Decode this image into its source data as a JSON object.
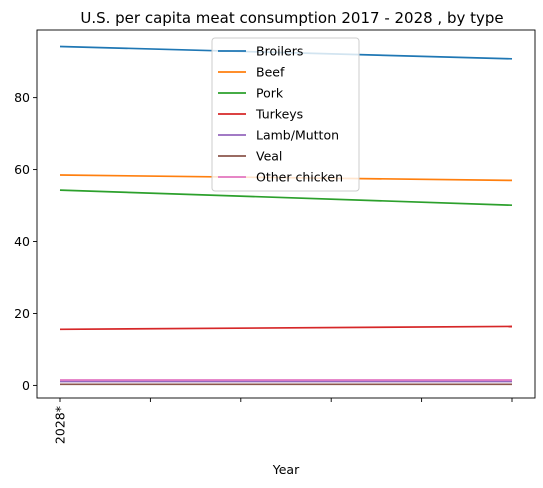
{
  "chart_data": {
    "type": "line",
    "title": "U.S. per capita meat consumption 2017 - 2028 , by type",
    "xlabel": "Year",
    "ylabel": "",
    "x_tick_labels": [
      "2028*",
      "",
      "",
      "",
      "",
      ""
    ],
    "y_ticks": [
      0,
      20,
      40,
      60,
      80
    ],
    "ylim": [
      -3.5,
      98.8
    ],
    "grid": false,
    "legend_position": "top-center",
    "series": [
      {
        "name": "Broilers",
        "color": "#1f77b4",
        "values": [
          94.2,
          90.8
        ]
      },
      {
        "name": "Beef",
        "color": "#ff7f0e",
        "values": [
          58.5,
          57.0
        ]
      },
      {
        "name": "Pork",
        "color": "#2ca02c",
        "values": [
          54.3,
          50.1
        ]
      },
      {
        "name": "Turkeys",
        "color": "#d62728",
        "values": [
          15.6,
          16.4
        ]
      },
      {
        "name": "Lamb/Mutton",
        "color": "#9467bd",
        "values": [
          1.1,
          1.1
        ]
      },
      {
        "name": "Veal",
        "color": "#8c564b",
        "values": [
          0.3,
          0.3
        ]
      },
      {
        "name": "Other chicken",
        "color": "#e377c2",
        "values": [
          1.5,
          1.5
        ]
      }
    ]
  }
}
